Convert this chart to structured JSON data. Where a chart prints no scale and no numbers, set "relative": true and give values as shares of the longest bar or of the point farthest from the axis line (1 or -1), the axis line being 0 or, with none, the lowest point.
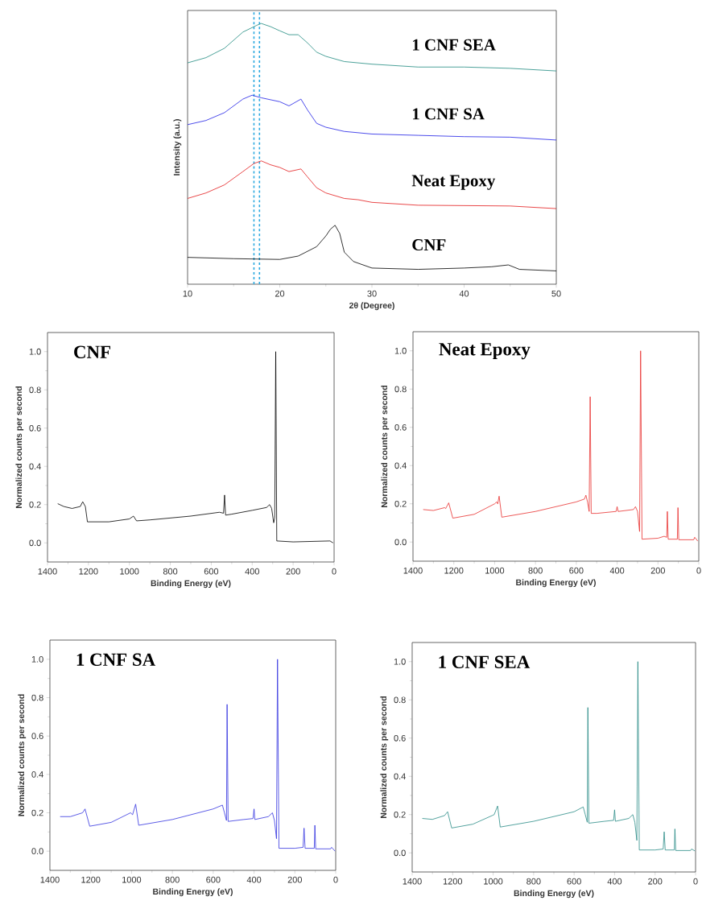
{
  "chart_data": [
    {
      "type": "line",
      "relative": true,
      "xlabel": "2θ (Degree)",
      "ylabel": "Intensity (a.u.)",
      "xlim": [
        10,
        50
      ],
      "xticks": [
        10,
        20,
        30,
        40,
        50
      ],
      "series": [
        {
          "name": "1 CNF SEA",
          "color": "#1f8a80",
          "x": [
            10,
            12,
            14,
            16,
            17.5,
            18,
            19,
            20,
            21,
            22,
            23,
            24,
            25,
            27,
            30,
            35,
            40,
            45,
            50
          ],
          "values": [
            0.849,
            0.869,
            0.905,
            0.967,
            0.993,
            1,
            0.988,
            0.972,
            0.957,
            0.957,
            0.926,
            0.89,
            0.874,
            0.854,
            0.844,
            0.833,
            0.833,
            0.828,
            0.818
          ]
        },
        {
          "name": "1 CNF SA",
          "color": "#1f1fe6",
          "x": [
            10,
            12,
            14,
            16,
            17,
            18,
            20,
            21,
            22.3,
            23,
            24,
            25,
            27,
            30,
            35,
            40,
            45,
            50
          ],
          "values": [
            0.612,
            0.628,
            0.658,
            0.71,
            0.725,
            0.715,
            0.7,
            0.684,
            0.71,
            0.669,
            0.617,
            0.602,
            0.586,
            0.576,
            0.571,
            0.566,
            0.564,
            0.553
          ]
        },
        {
          "name": "Neat Epoxy",
          "color": "#e31a1c",
          "x": [
            10,
            12,
            14,
            16,
            17.2,
            18,
            19,
            20,
            21,
            22.3,
            23,
            24,
            25,
            27,
            28.5,
            30,
            35,
            45,
            50
          ],
          "values": [
            0.329,
            0.35,
            0.381,
            0.432,
            0.463,
            0.473,
            0.458,
            0.448,
            0.432,
            0.442,
            0.412,
            0.37,
            0.35,
            0.329,
            0.324,
            0.314,
            0.303,
            0.3,
            0.29
          ]
        },
        {
          "name": "CNF",
          "color": "#000000",
          "x": [
            10,
            15,
            20,
            22,
            24,
            25,
            25.5,
            26,
            26.5,
            27,
            28,
            30,
            35,
            40,
            43,
            44.8,
            46,
            50
          ],
          "values": [
            0.103,
            0.098,
            0.095,
            0.108,
            0.144,
            0.185,
            0.211,
            0.226,
            0.195,
            0.123,
            0.087,
            0.062,
            0.057,
            0.062,
            0.067,
            0.074,
            0.057,
            0.051
          ]
        }
      ],
      "ref_lines": [
        {
          "axis": "x",
          "value": 17.2,
          "color": "#29a8e0",
          "line_style": "dashed"
        },
        {
          "axis": "x",
          "value": 17.8,
          "color": "#29a8e0",
          "line_style": "dashed"
        }
      ]
    },
    {
      "type": "line",
      "title": "CNF",
      "xlabel": "Binding Energy (eV)",
      "ylabel": "Normalized counts per second",
      "xlim": [
        1400,
        0
      ],
      "ylim": [
        -0.1,
        1.1
      ],
      "xticks": [
        1400,
        1200,
        1000,
        800,
        600,
        400,
        200,
        0
      ],
      "yticks": [
        {
          "value": 0,
          "label": "0.0"
        },
        {
          "value": 0.2,
          "label": "0.2"
        },
        {
          "value": 0.4,
          "label": "0.4"
        },
        {
          "value": 0.6,
          "label": "0.6"
        },
        {
          "value": 0.8,
          "label": "0.8"
        },
        {
          "value": 1,
          "label": "1.0"
        }
      ],
      "series": [
        {
          "color": "#000000",
          "x": [
            1350,
            1320,
            1280,
            1240,
            1228,
            1215,
            1205,
            1100,
            1000,
            980,
            965,
            900,
            700,
            560,
            540,
            535,
            530,
            500,
            400,
            330,
            315,
            305,
            295,
            290,
            285,
            280,
            200,
            20,
            5
          ],
          "values": [
            0.205,
            0.19,
            0.18,
            0.19,
            0.215,
            0.19,
            0.11,
            0.11,
            0.125,
            0.14,
            0.115,
            0.12,
            0.14,
            0.16,
            0.155,
            0.25,
            0.145,
            0.15,
            0.17,
            0.185,
            0.2,
            0.18,
            0.105,
            0.13,
            1.0,
            0.01,
            0.005,
            0.01,
            0.0
          ]
        }
      ]
    },
    {
      "type": "line",
      "title": "Neat Epoxy",
      "xlabel": "Binding Energy (eV)",
      "ylabel": "Normalized counts per second",
      "xlim": [
        1400,
        0
      ],
      "ylim": [
        -0.1,
        1.1
      ],
      "xticks": [
        1400,
        1200,
        1000,
        800,
        600,
        400,
        200,
        0
      ],
      "yticks": [
        {
          "value": 0,
          "label": "0.0"
        },
        {
          "value": 0.2,
          "label": "0.2"
        },
        {
          "value": 0.4,
          "label": "0.4"
        },
        {
          "value": 0.6,
          "label": "0.6"
        },
        {
          "value": 0.8,
          "label": "0.8"
        },
        {
          "value": 1,
          "label": "1.0"
        }
      ],
      "series": [
        {
          "color": "#e8302f",
          "x": [
            1350,
            1300,
            1245,
            1240,
            1225,
            1205,
            1100,
            1000,
            990,
            985,
            978,
            965,
            800,
            600,
            560,
            553,
            545,
            537,
            532,
            527,
            500,
            405,
            400,
            395,
            320,
            310,
            300,
            290,
            285,
            278,
            200,
            170,
            157,
            154,
            150,
            105,
            102,
            98,
            25,
            20,
            5
          ],
          "values": [
            0.17,
            0.165,
            0.18,
            0.175,
            0.205,
            0.125,
            0.145,
            0.2,
            0.21,
            0.2,
            0.24,
            0.13,
            0.16,
            0.21,
            0.225,
            0.245,
            0.21,
            0.16,
            0.76,
            0.15,
            0.15,
            0.16,
            0.185,
            0.16,
            0.17,
            0.185,
            0.16,
            0.055,
            1.0,
            0.015,
            0.02,
            0.03,
            0.025,
            0.16,
            0.015,
            0.015,
            0.18,
            0.012,
            0.012,
            0.025,
            0.005
          ]
        }
      ]
    },
    {
      "type": "line",
      "title": "1 CNF SA",
      "xlabel": "Binding Energy (eV)",
      "ylabel": "Normalized counts per second",
      "xlim": [
        1400,
        0
      ],
      "ylim": [
        -0.1,
        1.1
      ],
      "xticks": [
        1400,
        1200,
        1000,
        800,
        600,
        400,
        200,
        0
      ],
      "yticks": [
        {
          "value": 0,
          "label": "0.0"
        },
        {
          "value": 0.2,
          "label": "0.2"
        },
        {
          "value": 0.4,
          "label": "0.4"
        },
        {
          "value": 0.6,
          "label": "0.6"
        },
        {
          "value": 0.8,
          "label": "0.8"
        },
        {
          "value": 1,
          "label": "1.0"
        }
      ],
      "series": [
        {
          "color": "#3333e0",
          "x": [
            1350,
            1300,
            1240,
            1228,
            1205,
            1100,
            1005,
            995,
            980,
            965,
            800,
            600,
            555,
            545,
            535,
            532,
            527,
            450,
            405,
            400,
            396,
            330,
            310,
            300,
            290,
            285,
            278,
            200,
            160,
            155,
            150,
            105,
            102,
            98,
            25,
            20,
            3
          ],
          "values": [
            0.18,
            0.18,
            0.2,
            0.22,
            0.13,
            0.15,
            0.2,
            0.19,
            0.245,
            0.135,
            0.165,
            0.22,
            0.24,
            0.2,
            0.16,
            0.765,
            0.155,
            0.165,
            0.17,
            0.22,
            0.165,
            0.18,
            0.2,
            0.16,
            0.065,
            1.0,
            0.015,
            0.015,
            0.02,
            0.12,
            0.015,
            0.015,
            0.135,
            0.012,
            0.012,
            0.02,
            0.0
          ]
        }
      ]
    },
    {
      "type": "line",
      "title": "1 CNF SEA",
      "xlabel": "Binding Energy (eV)",
      "ylabel": "Normalized counts per second",
      "xlim": [
        1400,
        0
      ],
      "ylim": [
        -0.1,
        1.1
      ],
      "xticks": [
        1400,
        1200,
        1000,
        800,
        600,
        400,
        200,
        0
      ],
      "yticks": [
        {
          "value": 0,
          "label": "0.0"
        },
        {
          "value": 0.2,
          "label": "0.2"
        },
        {
          "value": 0.4,
          "label": "0.4"
        },
        {
          "value": 0.6,
          "label": "0.6"
        },
        {
          "value": 0.8,
          "label": "0.8"
        },
        {
          "value": 1,
          "label": "1.0"
        }
      ],
      "series": [
        {
          "color": "#2a8c87",
          "x": [
            1350,
            1300,
            1240,
            1225,
            1205,
            1100,
            1005,
            995,
            978,
            965,
            800,
            600,
            555,
            545,
            535,
            532,
            527,
            450,
            405,
            400,
            396,
            330,
            310,
            300,
            290,
            285,
            278,
            200,
            160,
            155,
            150,
            105,
            102,
            98,
            25,
            20,
            3
          ],
          "values": [
            0.18,
            0.175,
            0.195,
            0.215,
            0.13,
            0.15,
            0.195,
            0.2,
            0.245,
            0.135,
            0.165,
            0.215,
            0.24,
            0.2,
            0.16,
            0.76,
            0.155,
            0.165,
            0.17,
            0.225,
            0.165,
            0.18,
            0.2,
            0.16,
            0.065,
            1.0,
            0.015,
            0.015,
            0.02,
            0.11,
            0.015,
            0.015,
            0.125,
            0.012,
            0.012,
            0.02,
            0.01
          ]
        }
      ]
    }
  ]
}
